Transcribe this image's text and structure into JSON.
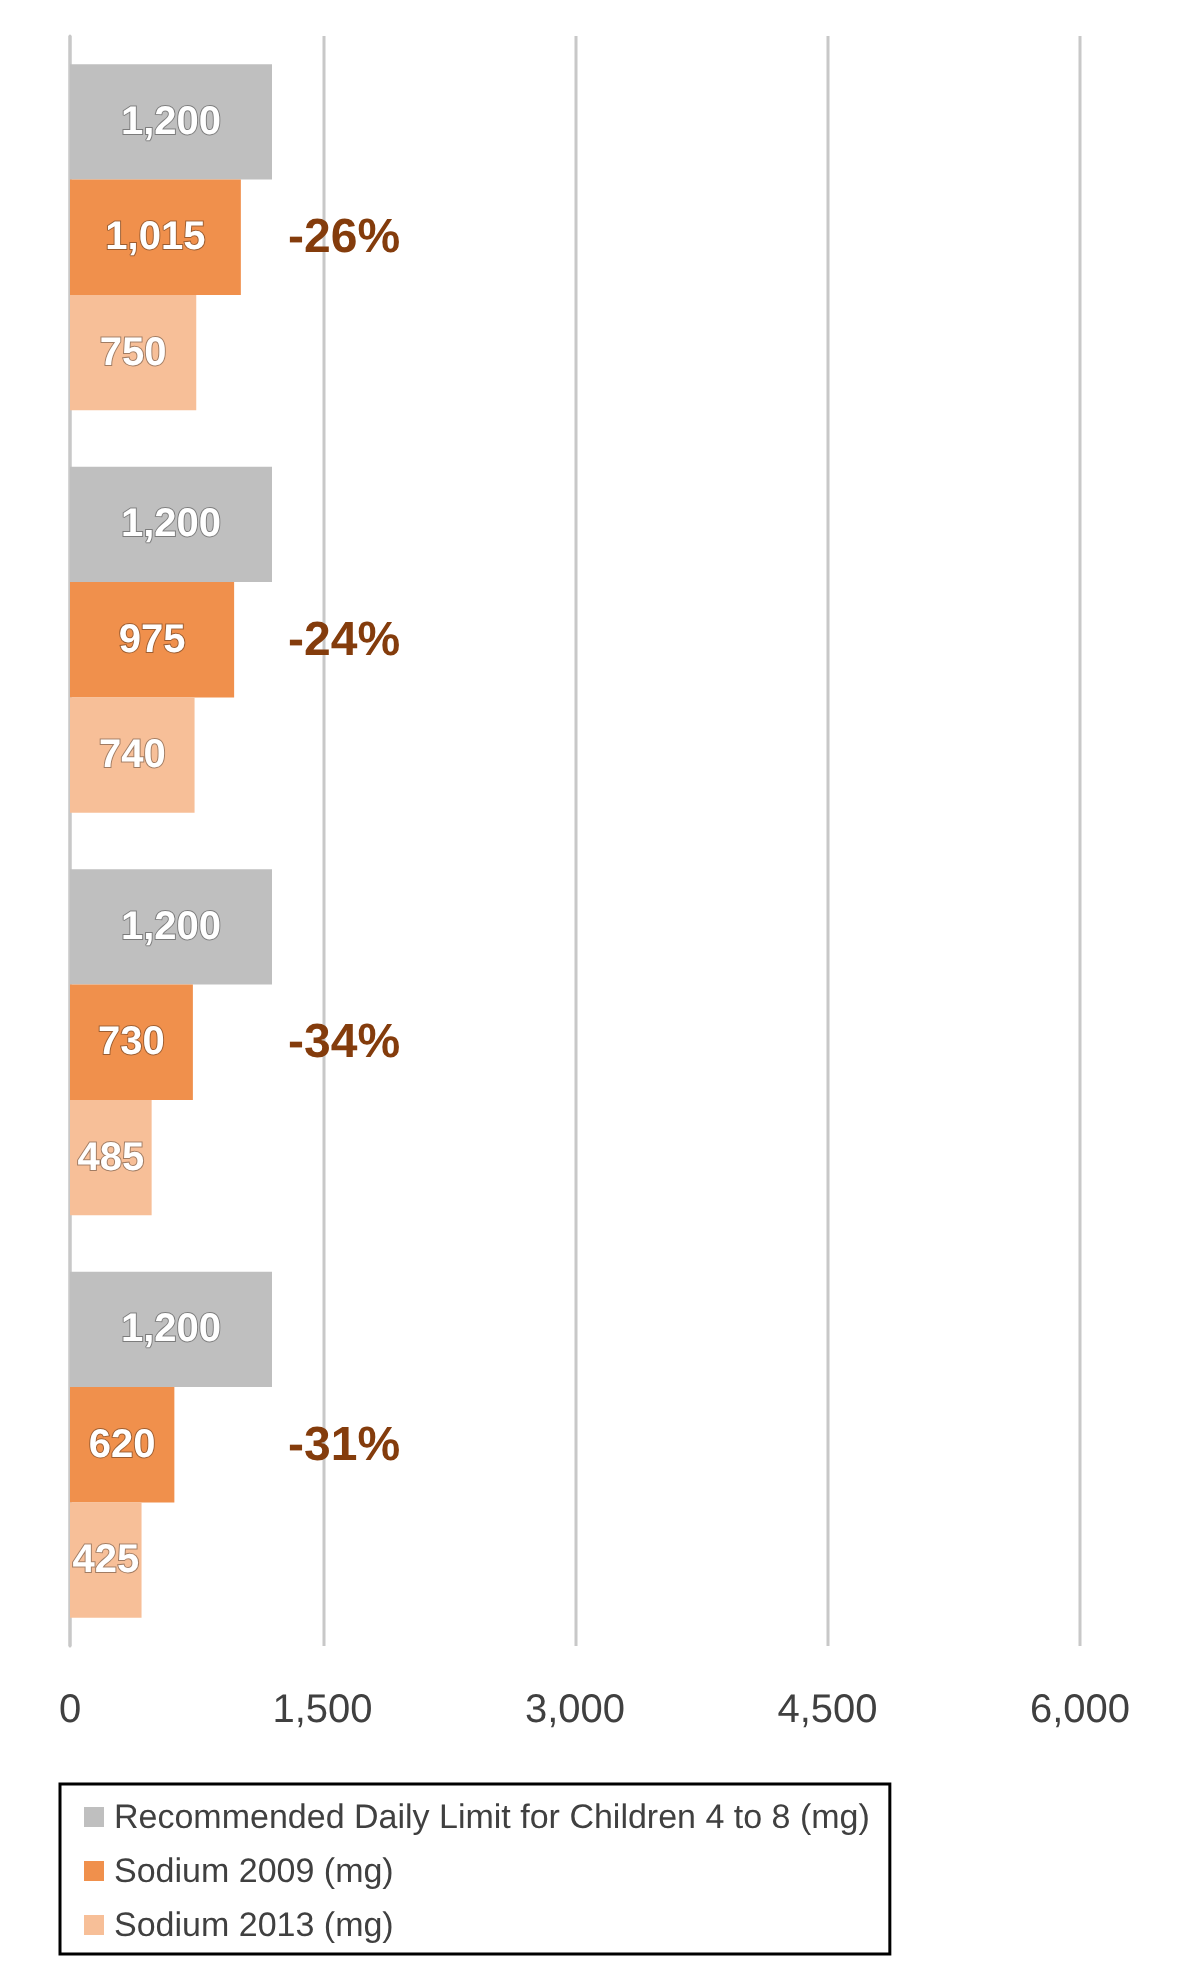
{
  "chart_data": {
    "type": "bar",
    "orientation": "horizontal",
    "categories": [
      null,
      null,
      null,
      null
    ],
    "series": [
      {
        "name": "Recommended Daily Limit for Children 4 to 8 (mg)",
        "color": "#bfbfbf",
        "values": [
          1200,
          1200,
          1200,
          1200
        ],
        "value_labels": [
          "1,200",
          "1,200",
          "1,200",
          "1,200"
        ]
      },
      {
        "name": "Sodium 2009 (mg)",
        "color": "#f0904c",
        "values": [
          1015,
          975,
          730,
          620
        ],
        "value_labels": [
          "1,015",
          "975",
          "730",
          "620"
        ]
      },
      {
        "name": "Sodium 2013 (mg)",
        "color": "#f7bf98",
        "values": [
          750,
          740,
          485,
          425
        ],
        "value_labels": [
          "750",
          "740",
          "485",
          "425"
        ]
      }
    ],
    "xlim": [
      0,
      6000
    ],
    "xticks": [
      0,
      {
        "value": 1500,
        "label": "1,500"
      },
      {
        "value": 3000,
        "label": "3,000"
      },
      {
        "value": 4500,
        "label": "4,500"
      },
      {
        "value": 6000,
        "label": "6,000"
      }
    ],
    "grid": "x",
    "legend": "bottom",
    "annotations": [
      "-26%",
      "-24%",
      "-34%",
      "-31%"
    ]
  }
}
